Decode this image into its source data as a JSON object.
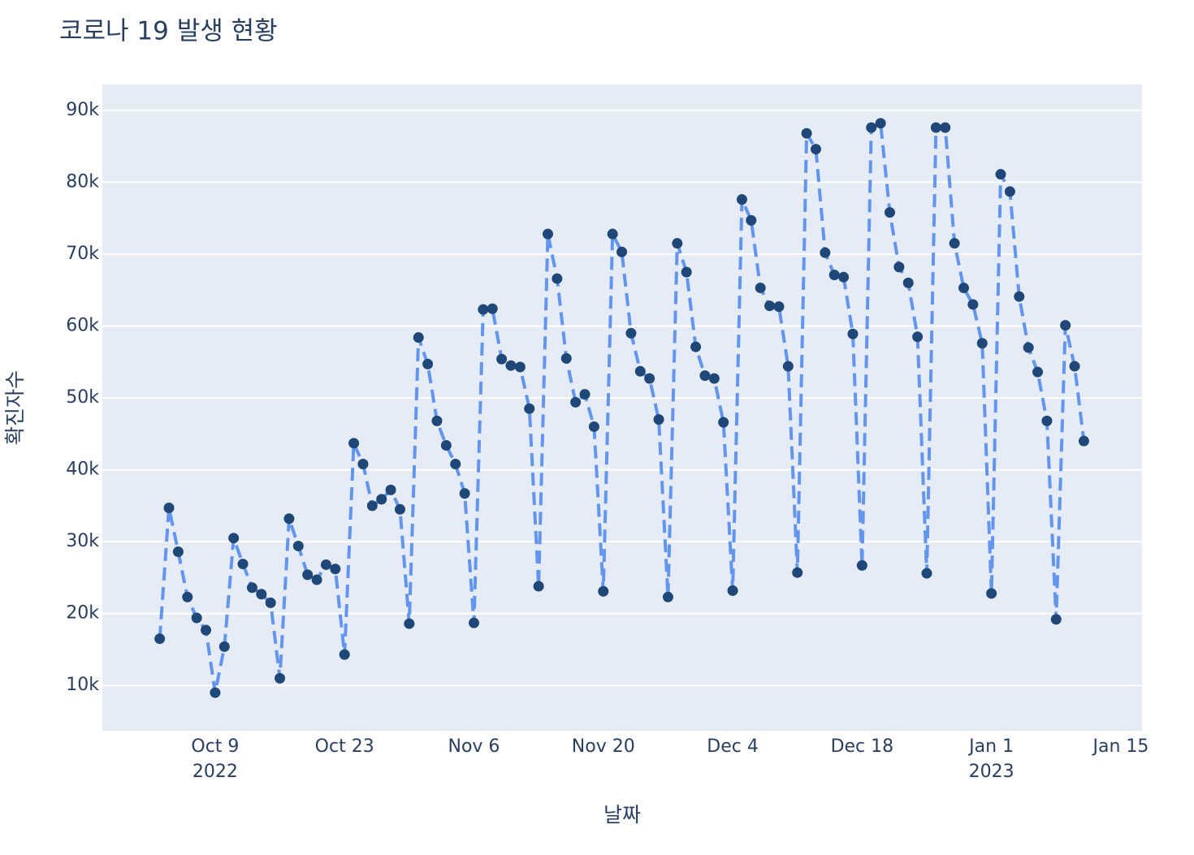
{
  "chart_data": {
    "type": "line",
    "title": "코로나 19 발생 현황",
    "x_label": "날짜",
    "y_label": "확진자수",
    "x": [
      "2022-10-03",
      "2022-10-04",
      "2022-10-05",
      "2022-10-06",
      "2022-10-07",
      "2022-10-08",
      "2022-10-09",
      "2022-10-10",
      "2022-10-11",
      "2022-10-12",
      "2022-10-13",
      "2022-10-14",
      "2022-10-15",
      "2022-10-16",
      "2022-10-17",
      "2022-10-18",
      "2022-10-19",
      "2022-10-20",
      "2022-10-21",
      "2022-10-22",
      "2022-10-23",
      "2022-10-24",
      "2022-10-25",
      "2022-10-26",
      "2022-10-27",
      "2022-10-28",
      "2022-10-29",
      "2022-10-30",
      "2022-10-31",
      "2022-11-01",
      "2022-11-02",
      "2022-11-03",
      "2022-11-04",
      "2022-11-05",
      "2022-11-06",
      "2022-11-07",
      "2022-11-08",
      "2022-11-09",
      "2022-11-10",
      "2022-11-11",
      "2022-11-12",
      "2022-11-13",
      "2022-11-14",
      "2022-11-15",
      "2022-11-16",
      "2022-11-17",
      "2022-11-18",
      "2022-11-19",
      "2022-11-20",
      "2022-11-21",
      "2022-11-22",
      "2022-11-23",
      "2022-11-24",
      "2022-11-25",
      "2022-11-26",
      "2022-11-27",
      "2022-11-28",
      "2022-11-29",
      "2022-11-30",
      "2022-12-01",
      "2022-12-02",
      "2022-12-03",
      "2022-12-04",
      "2022-12-05",
      "2022-12-06",
      "2022-12-07",
      "2022-12-08",
      "2022-12-09",
      "2022-12-10",
      "2022-12-11",
      "2022-12-12",
      "2022-12-13",
      "2022-12-14",
      "2022-12-15",
      "2022-12-16",
      "2022-12-17",
      "2022-12-18",
      "2022-12-19",
      "2022-12-20",
      "2022-12-21",
      "2022-12-22",
      "2022-12-23",
      "2022-12-24",
      "2022-12-25",
      "2022-12-26",
      "2022-12-27",
      "2022-12-28",
      "2022-12-29",
      "2022-12-30",
      "2022-12-31",
      "2023-01-01",
      "2023-01-02",
      "2023-01-03",
      "2023-01-04",
      "2023-01-05",
      "2023-01-06",
      "2023-01-07",
      "2023-01-08",
      "2023-01-09",
      "2023-01-10",
      "2023-01-11"
    ],
    "series": [
      {
        "name": "확진자수",
        "color": "#6495ed",
        "marker_color": "#1f4777",
        "dash": true,
        "values": [
          16500,
          34700,
          28600,
          22300,
          19400,
          17700,
          9000,
          15400,
          30500,
          26900,
          23600,
          22700,
          21500,
          11000,
          33200,
          29400,
          25400,
          24700,
          26800,
          26200,
          14300,
          43700,
          40800,
          35000,
          35900,
          37200,
          34500,
          18600,
          58400,
          54700,
          46800,
          43400,
          40800,
          36700,
          18700,
          62300,
          62400,
          55400,
          54500,
          54300,
          48500,
          23800,
          72800,
          66600,
          55500,
          49400,
          50500,
          46000,
          23100,
          72800,
          70300,
          59000,
          53700,
          52700,
          47000,
          22300,
          71500,
          67500,
          57100,
          53100,
          52700,
          46600,
          23200,
          77600,
          74700,
          65300,
          62800,
          62700,
          54400,
          25700,
          86800,
          84600,
          70200,
          67100,
          66800,
          58900,
          26700,
          87600,
          88200,
          75800,
          68200,
          66000,
          58500,
          25600,
          87600,
          87600,
          71500,
          65300,
          63000,
          57600,
          22800,
          81100,
          78700,
          64100,
          57000,
          53600,
          46800,
          19200,
          60100,
          54400,
          44000
        ]
      }
    ],
    "xlim": [
      "2022-09-26T19:00",
      "2023-01-17T07:00"
    ],
    "xticks": [
      {
        "value": "2022-10-09",
        "label": "Oct 9",
        "sublabel": "2022"
      },
      {
        "value": "2022-10-23",
        "label": "Oct 23"
      },
      {
        "value": "2022-11-06",
        "label": "Nov 6"
      },
      {
        "value": "2022-11-20",
        "label": "Nov 20"
      },
      {
        "value": "2022-12-04",
        "label": "Dec 4"
      },
      {
        "value": "2022-12-18",
        "label": "Dec 18"
      },
      {
        "value": "2023-01-01",
        "label": "Jan 1",
        "sublabel": "2023"
      },
      {
        "value": "2023-01-15",
        "label": "Jan 15"
      }
    ],
    "ylim": [
      3700,
      93600
    ],
    "yticks": [
      {
        "value": 10000,
        "label": "10k"
      },
      {
        "value": 20000,
        "label": "20k"
      },
      {
        "value": 30000,
        "label": "30k"
      },
      {
        "value": 40000,
        "label": "40k"
      },
      {
        "value": 50000,
        "label": "50k"
      },
      {
        "value": 60000,
        "label": "60k"
      },
      {
        "value": 70000,
        "label": "70k"
      },
      {
        "value": 80000,
        "label": "80k"
      },
      {
        "value": 90000,
        "label": "90k"
      }
    ],
    "grid": true
  }
}
